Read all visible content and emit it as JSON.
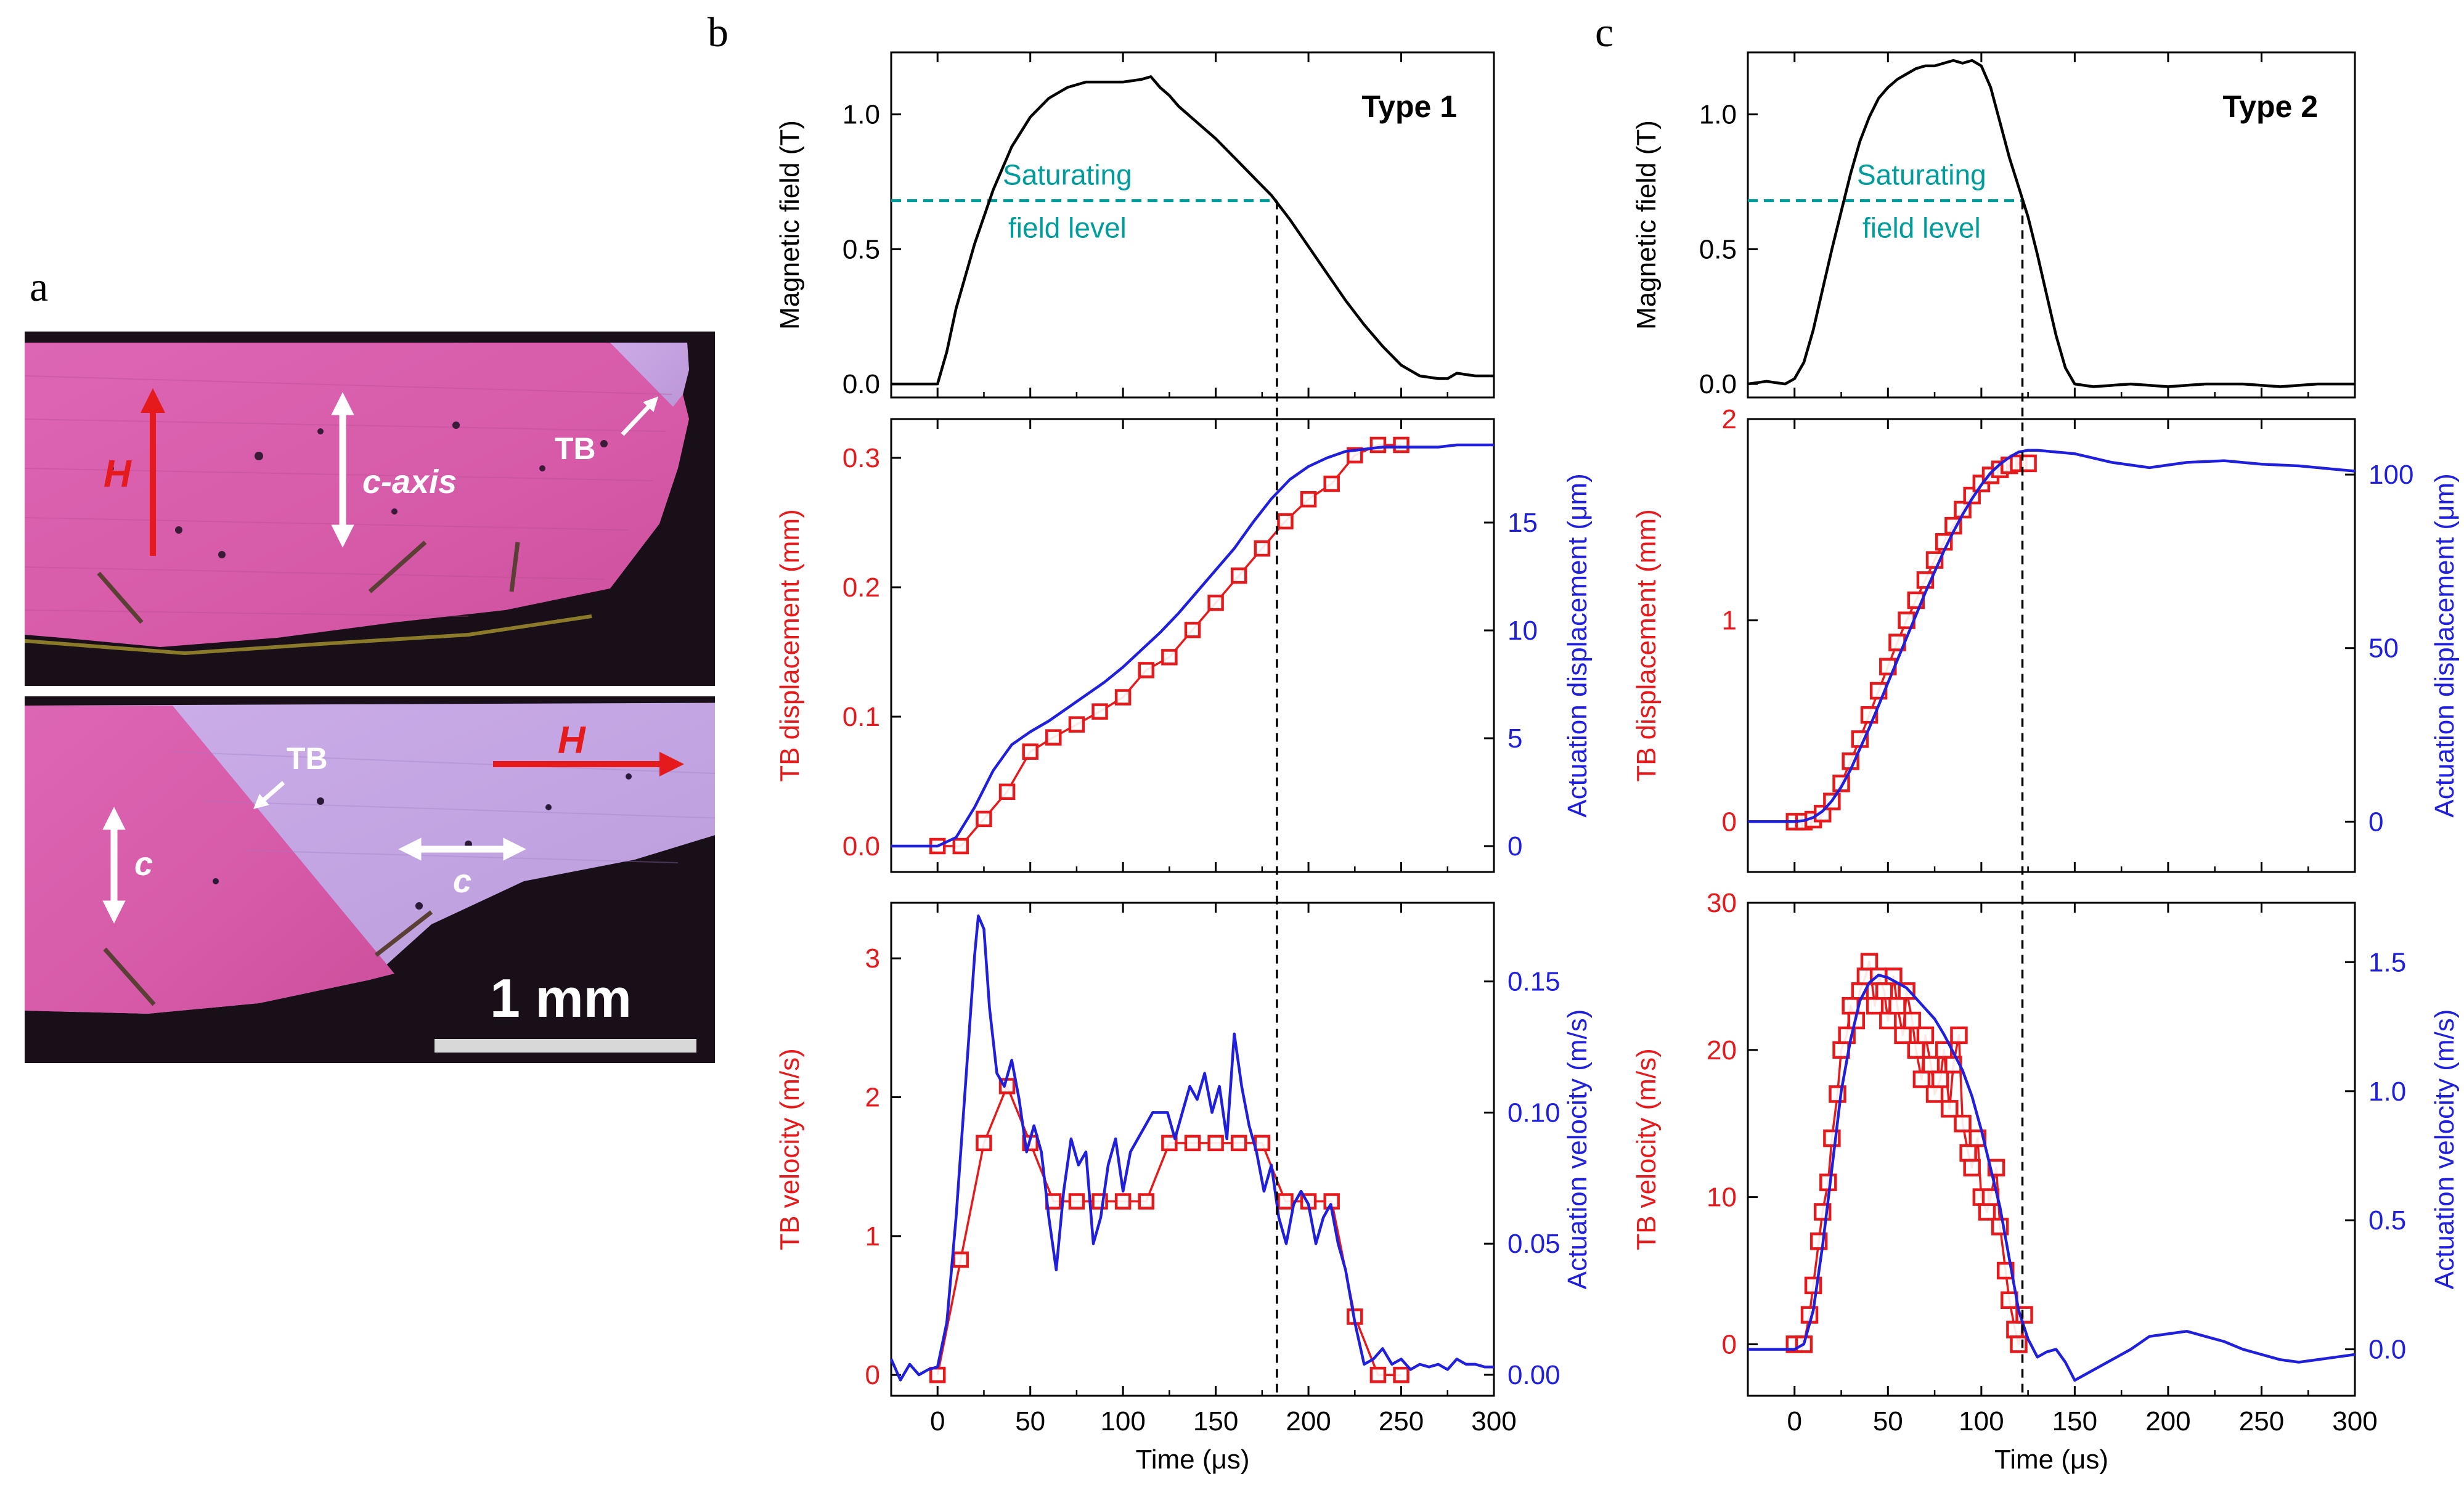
{
  "panels": {
    "a": {
      "label": "a",
      "top": {
        "field_label": "H",
        "axis_label": "c-axis",
        "tb_label": "TB"
      },
      "bottom": {
        "field_label": "H",
        "c_left_label": "c",
        "c_right_label": "c",
        "tb_label": "TB",
        "scalebar_label": "1 mm"
      }
    },
    "b": {
      "label": "b"
    },
    "c": {
      "label": "c"
    }
  },
  "colors": {
    "red": "#e41a1c",
    "blue": "#1f1fdc",
    "teal": "#009c9c",
    "black": "#000000",
    "pink": "#d65aa8",
    "lavender": "#c6a6e6"
  },
  "chart_data": [
    {
      "id": "b-field",
      "type": "line",
      "title": "Type 1",
      "annotation": [
        "Saturating",
        "field level"
      ],
      "ylabel": "Magnetic field (T)",
      "xlim": [
        -25,
        300
      ],
      "ylim": [
        -0.05,
        1.23
      ],
      "yticks": [
        0.0,
        0.5,
        1.0
      ],
      "ytick_labels": [
        "0.0",
        "0.5",
        "1.0"
      ],
      "saturation_level": 0.68,
      "marker_time": 183,
      "series": [
        {
          "name": "Magnetic field",
          "color": "#000000",
          "x": [
            -25,
            0,
            5,
            10,
            20,
            30,
            40,
            50,
            60,
            70,
            80,
            90,
            100,
            110,
            115,
            120,
            125,
            130,
            140,
            150,
            160,
            170,
            180,
            190,
            200,
            210,
            220,
            230,
            240,
            250,
            260,
            270,
            275,
            280,
            290,
            300
          ],
          "y": [
            0,
            0,
            0.12,
            0.28,
            0.52,
            0.72,
            0.88,
            0.99,
            1.06,
            1.1,
            1.12,
            1.12,
            1.12,
            1.13,
            1.14,
            1.1,
            1.07,
            1.03,
            0.97,
            0.91,
            0.84,
            0.77,
            0.7,
            0.61,
            0.51,
            0.41,
            0.31,
            0.22,
            0.14,
            0.07,
            0.03,
            0.02,
            0.02,
            0.04,
            0.03,
            0.03
          ]
        }
      ]
    },
    {
      "id": "b-disp",
      "type": "line",
      "ylabel": "TB displacement (mm)",
      "y2label": "Actuation displacement (μm)",
      "xlim": [
        -25,
        300
      ],
      "ylim": [
        -0.02,
        0.33
      ],
      "yticks": [
        0.0,
        0.1,
        0.2,
        0.3
      ],
      "ytick_labels": [
        "0.0",
        "0.1",
        "0.2",
        "0.3"
      ],
      "y2lim": [
        -1.2,
        19.8
      ],
      "y2ticks": [
        0,
        5,
        10,
        15
      ],
      "y2tick_labels": [
        "0",
        "5",
        "10",
        "15"
      ],
      "series": [
        {
          "name": "TB displacement",
          "color": "#e41a1c",
          "marker": "square",
          "x": [
            0,
            12.5,
            25,
            37.5,
            50,
            62.5,
            75,
            87.5,
            100,
            112.5,
            125,
            137.5,
            150,
            162.5,
            175,
            187.5,
            200,
            212.5,
            225,
            237.5,
            250
          ],
          "y": [
            0,
            0,
            0.021,
            0.042,
            0.073,
            0.084,
            0.094,
            0.104,
            0.115,
            0.136,
            0.146,
            0.167,
            0.188,
            0.209,
            0.23,
            0.251,
            0.268,
            0.28,
            0.302,
            0.31,
            0.31
          ]
        },
        {
          "name": "Actuation displacement",
          "color": "#1f1fdc",
          "axis": "y2",
          "x": [
            -25,
            0,
            10,
            20,
            30,
            40,
            50,
            60,
            70,
            80,
            90,
            100,
            110,
            120,
            130,
            140,
            150,
            160,
            170,
            180,
            190,
            200,
            210,
            220,
            230,
            240,
            250,
            260,
            270,
            280,
            290,
            300
          ],
          "y": [
            0,
            0,
            0.4,
            1.8,
            3.5,
            4.7,
            5.3,
            5.8,
            6.4,
            7.0,
            7.6,
            8.3,
            9.1,
            9.9,
            10.8,
            11.8,
            12.8,
            13.8,
            15.0,
            16.1,
            17.0,
            17.6,
            18.0,
            18.3,
            18.4,
            18.5,
            18.5,
            18.5,
            18.5,
            18.6,
            18.6,
            18.6
          ]
        }
      ]
    },
    {
      "id": "b-vel",
      "type": "line",
      "ylabel": "TB velocity (m/s)",
      "y2label": "Actuation velocity (m/s)",
      "xlabel": "Time (μs)",
      "xlim": [
        -25,
        300
      ],
      "xticks": [
        0,
        50,
        100,
        150,
        200,
        250,
        300
      ],
      "xtick_labels": [
        "0",
        "50",
        "100",
        "150",
        "200",
        "250",
        "300"
      ],
      "ylim": [
        -0.15,
        3.4
      ],
      "yticks": [
        0,
        1,
        2,
        3
      ],
      "ytick_labels": [
        "0",
        "1",
        "2",
        "3"
      ],
      "y2lim": [
        -0.008,
        0.18
      ],
      "y2ticks": [
        0.0,
        0.05,
        0.1,
        0.15
      ],
      "y2tick_labels": [
        "0.00",
        "0.05",
        "0.10",
        "0.15"
      ],
      "series": [
        {
          "name": "TB velocity",
          "color": "#e41a1c",
          "marker": "square",
          "x": [
            0,
            12.5,
            25,
            37.5,
            50,
            62.5,
            75,
            87.5,
            100,
            112.5,
            125,
            137.5,
            150,
            162.5,
            175,
            187.5,
            200,
            212.5,
            225,
            237.5,
            250
          ],
          "y": [
            0,
            0.83,
            1.67,
            2.08,
            1.67,
            1.25,
            1.25,
            1.25,
            1.25,
            1.25,
            1.67,
            1.67,
            1.67,
            1.67,
            1.67,
            1.25,
            1.25,
            1.25,
            0.42,
            0,
            0
          ]
        },
        {
          "name": "Actuation velocity",
          "color": "#1f1fdc",
          "axis": "y2",
          "x": [
            -25,
            -20,
            -15,
            -10,
            -5,
            0,
            5,
            10,
            15,
            20,
            22,
            25,
            28,
            32,
            36,
            40,
            44,
            48,
            52,
            56,
            60,
            64,
            68,
            72,
            76,
            80,
            84,
            88,
            92,
            96,
            100,
            104,
            108,
            112,
            116,
            120,
            124,
            128,
            132,
            136,
            140,
            144,
            148,
            152,
            156,
            160,
            164,
            168,
            172,
            176,
            180,
            184,
            188,
            192,
            196,
            200,
            204,
            208,
            212,
            216,
            220,
            225,
            230,
            235,
            240,
            245,
            250,
            255,
            260,
            265,
            270,
            275,
            280,
            285,
            290,
            295,
            300
          ],
          "y": [
            0.006,
            -0.002,
            0.004,
            0.0,
            0.002,
            0.003,
            0.02,
            0.06,
            0.11,
            0.16,
            0.175,
            0.17,
            0.14,
            0.115,
            0.11,
            0.12,
            0.105,
            0.085,
            0.095,
            0.085,
            0.06,
            0.04,
            0.07,
            0.09,
            0.08,
            0.085,
            0.05,
            0.06,
            0.08,
            0.09,
            0.07,
            0.085,
            0.09,
            0.095,
            0.1,
            0.1,
            0.1,
            0.09,
            0.1,
            0.11,
            0.105,
            0.115,
            0.1,
            0.11,
            0.09,
            0.13,
            0.11,
            0.095,
            0.085,
            0.07,
            0.08,
            0.06,
            0.05,
            0.065,
            0.07,
            0.065,
            0.05,
            0.06,
            0.065,
            0.05,
            0.04,
            0.02,
            0.004,
            0.006,
            0.01,
            0.004,
            0.006,
            0.002,
            0.004,
            0.003,
            0.004,
            0.002,
            0.006,
            0.004,
            0.004,
            0.003,
            0.003
          ]
        }
      ]
    },
    {
      "id": "c-field",
      "type": "line",
      "title": "Type 2",
      "annotation": [
        "Saturating",
        "field level"
      ],
      "ylabel": "Magnetic field (T)",
      "xlim": [
        -25,
        300
      ],
      "ylim": [
        -0.05,
        1.23
      ],
      "yticks": [
        0.0,
        0.5,
        1.0
      ],
      "ytick_labels": [
        "0.0",
        "0.5",
        "1.0"
      ],
      "saturation_level": 0.68,
      "marker_time": 122,
      "series": [
        {
          "name": "Magnetic field",
          "color": "#000000",
          "x": [
            -25,
            -15,
            -5,
            0,
            5,
            10,
            15,
            20,
            25,
            30,
            35,
            40,
            45,
            50,
            55,
            60,
            65,
            70,
            75,
            80,
            85,
            90,
            95,
            100,
            105,
            110,
            115,
            120,
            125,
            130,
            135,
            140,
            145,
            150,
            160,
            180,
            200,
            220,
            240,
            260,
            280,
            300
          ],
          "y": [
            0,
            0.01,
            0,
            0.02,
            0.08,
            0.2,
            0.35,
            0.5,
            0.64,
            0.78,
            0.9,
            0.99,
            1.06,
            1.1,
            1.13,
            1.15,
            1.17,
            1.18,
            1.18,
            1.19,
            1.2,
            1.19,
            1.2,
            1.18,
            1.1,
            0.97,
            0.84,
            0.73,
            0.62,
            0.48,
            0.33,
            0.18,
            0.06,
            0.0,
            -0.01,
            0,
            -0.01,
            0,
            0,
            -0.01,
            0,
            0
          ]
        }
      ]
    },
    {
      "id": "c-disp",
      "type": "line",
      "ylabel": "TB displacement (mm)",
      "y2label": "Actuation displacement (μm)",
      "xlim": [
        -25,
        300
      ],
      "ylim": [
        -0.25,
        2.0
      ],
      "yticks": [
        0,
        1,
        2
      ],
      "ytick_labels": [
        "0",
        "1",
        "2"
      ],
      "y2lim": [
        -14.5,
        116
      ],
      "y2ticks": [
        0,
        50,
        100
      ],
      "y2tick_labels": [
        "0",
        "50",
        "100"
      ],
      "series": [
        {
          "name": "TB displacement",
          "color": "#e41a1c",
          "marker": "square",
          "x": [
            0,
            5,
            10,
            15,
            20,
            25,
            30,
            35,
            40,
            45,
            50,
            55,
            60,
            65,
            70,
            75,
            80,
            85,
            90,
            95,
            100,
            105,
            110,
            115,
            120,
            125
          ],
          "y": [
            0,
            0,
            0.01,
            0.04,
            0.1,
            0.19,
            0.3,
            0.41,
            0.53,
            0.65,
            0.77,
            0.89,
            1.0,
            1.1,
            1.2,
            1.3,
            1.39,
            1.47,
            1.55,
            1.62,
            1.68,
            1.72,
            1.75,
            1.77,
            1.78,
            1.78
          ]
        },
        {
          "name": "Actuation displacement",
          "color": "#1f1fdc",
          "axis": "y2",
          "x": [
            -25,
            0,
            5,
            10,
            15,
            20,
            25,
            30,
            35,
            40,
            45,
            50,
            55,
            60,
            65,
            70,
            75,
            80,
            85,
            90,
            95,
            100,
            105,
            110,
            115,
            120,
            125,
            130,
            140,
            150,
            170,
            190,
            210,
            230,
            250,
            270,
            290,
            300
          ],
          "y": [
            0,
            0,
            0.3,
            1.2,
            3.0,
            6.0,
            10.0,
            15.0,
            21.0,
            27.0,
            33.5,
            40.0,
            46.5,
            53.0,
            59.5,
            66.0,
            72.0,
            78.0,
            83.5,
            88.5,
            93.0,
            97.0,
            100.5,
            103.0,
            105.0,
            106.5,
            107.0,
            107.0,
            106.5,
            106.0,
            103.5,
            102.0,
            103.5,
            104.0,
            103.0,
            102.5,
            101.5,
            101.0
          ]
        }
      ]
    },
    {
      "id": "c-vel",
      "type": "line",
      "ylabel": "TB velocity (m/s)",
      "y2label": "Actuation velocity (m/s)",
      "xlabel": "Time (μs)",
      "xlim": [
        -25,
        300
      ],
      "xticks": [
        0,
        50,
        100,
        150,
        200,
        250,
        300
      ],
      "xtick_labels": [
        "0",
        "50",
        "100",
        "150",
        "200",
        "250",
        "300"
      ],
      "ylim": [
        -3.5,
        30
      ],
      "yticks": [
        0,
        10,
        20,
        30
      ],
      "ytick_labels": [
        "0",
        "10",
        "20",
        "30"
      ],
      "y2lim": [
        -0.18,
        1.73
      ],
      "y2ticks": [
        0.0,
        0.5,
        1.0,
        1.5
      ],
      "y2tick_labels": [
        "0.0",
        "0.5",
        "1.0",
        "1.5"
      ],
      "series": [
        {
          "name": "TB velocity",
          "color": "#e41a1c",
          "marker": "square",
          "x": [
            0,
            5,
            8,
            10,
            13,
            15,
            18,
            20,
            23,
            25,
            28,
            30,
            33,
            35,
            38,
            40,
            43,
            45,
            48,
            50,
            53,
            55,
            58,
            60,
            63,
            65,
            68,
            70,
            73,
            75,
            78,
            80,
            83,
            85,
            88,
            90,
            93,
            95,
            98,
            100,
            103,
            105,
            108,
            110,
            113,
            115,
            118,
            120,
            123
          ],
          "y": [
            0,
            0,
            2,
            4,
            7,
            9,
            11,
            14,
            17,
            20,
            21,
            23,
            22,
            24,
            25,
            26,
            23,
            25,
            24,
            22,
            25,
            23,
            21,
            24,
            22,
            20,
            18,
            21,
            19,
            17,
            18,
            20,
            16,
            19,
            21,
            15,
            13,
            12,
            14,
            10,
            9,
            10,
            12,
            8,
            5,
            3,
            1,
            0,
            2
          ]
        },
        {
          "name": "Actuation velocity",
          "color": "#1f1fdc",
          "axis": "y2",
          "x": [
            -25,
            0,
            5,
            10,
            15,
            20,
            25,
            30,
            35,
            40,
            45,
            50,
            55,
            60,
            65,
            70,
            75,
            80,
            85,
            90,
            95,
            100,
            105,
            110,
            115,
            120,
            125,
            130,
            135,
            140,
            145,
            150,
            160,
            170,
            180,
            190,
            200,
            210,
            220,
            230,
            240,
            250,
            260,
            270,
            280,
            290,
            300
          ],
          "y": [
            0,
            0,
            0.02,
            0.15,
            0.4,
            0.7,
            1.0,
            1.2,
            1.35,
            1.42,
            1.45,
            1.44,
            1.42,
            1.4,
            1.36,
            1.32,
            1.28,
            1.22,
            1.15,
            1.08,
            0.98,
            0.85,
            0.7,
            0.55,
            0.35,
            0.15,
            0.04,
            -0.03,
            -0.01,
            0.0,
            -0.05,
            -0.12,
            -0.08,
            -0.04,
            0.0,
            0.05,
            0.06,
            0.07,
            0.05,
            0.03,
            0.0,
            -0.02,
            -0.04,
            -0.05,
            -0.04,
            -0.03,
            -0.02
          ]
        }
      ]
    }
  ]
}
